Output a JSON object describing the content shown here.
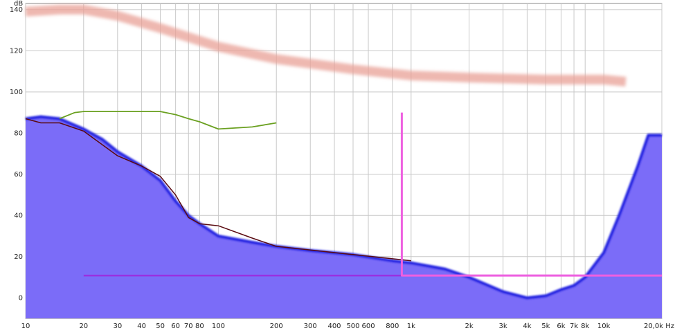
{
  "chart_data": {
    "type": "line",
    "y_label": "dB",
    "x_scale": "log",
    "grid": true,
    "xlim": [
      10,
      20000
    ],
    "ylim": [
      -10,
      143
    ],
    "xticks": [
      10,
      20,
      30,
      40,
      50,
      60,
      70,
      80,
      100,
      200,
      300,
      400,
      500,
      600,
      800,
      {
        "value": 1000,
        "label": "1k"
      },
      {
        "value": 2000,
        "label": "2k"
      },
      {
        "value": 3000,
        "label": "3k"
      },
      {
        "value": 4000,
        "label": "4k"
      },
      {
        "value": 5000,
        "label": "5k"
      },
      {
        "value": 6000,
        "label": "6k"
      },
      {
        "value": 7000,
        "label": "7k"
      },
      {
        "value": 8000,
        "label": "8k"
      },
      {
        "value": 10000,
        "label": "10k"
      },
      {
        "value": 20000,
        "label": "20,0k Hz"
      }
    ],
    "yticks": [
      0,
      20,
      40,
      60,
      80,
      100,
      120,
      140
    ],
    "series": [
      {
        "color": "#e8a095",
        "fill": false,
        "x": [
          10,
          15,
          20,
          30,
          50,
          100,
          200,
          500,
          1000,
          2000,
          5000,
          10000,
          13000
        ],
        "values": [
          139,
          140,
          140,
          137,
          131,
          122,
          116,
          111,
          108,
          107,
          106,
          106,
          105
        ]
      },
      {
        "color": "#7b6cf8",
        "fill": true,
        "x": [
          10,
          12,
          15,
          20,
          25,
          30,
          40,
          50,
          60,
          70,
          80,
          100,
          150,
          200,
          300,
          500,
          800,
          1000,
          1500,
          2000,
          3000,
          4000,
          5000,
          6000,
          7000,
          8000,
          10000,
          12000,
          15000,
          17000,
          20000
        ],
        "values": [
          87,
          88,
          87,
          82,
          77,
          71,
          64,
          57,
          47,
          40,
          36,
          30,
          27,
          25,
          23,
          21,
          18,
          17,
          14,
          10,
          3,
          0,
          1,
          4,
          6,
          10,
          22,
          40,
          64,
          79,
          79
        ]
      },
      {
        "color": "#5a0a10",
        "fill": false,
        "x": [
          10,
          12,
          15,
          20,
          30,
          40,
          50,
          60,
          70,
          80,
          100,
          150,
          200,
          500,
          1000
        ],
        "values": [
          87,
          85,
          85,
          81,
          69,
          64,
          59,
          50,
          39,
          36,
          35,
          29,
          25,
          21,
          18
        ]
      },
      {
        "color": "#6aa020",
        "fill": false,
        "x": [
          15,
          18,
          20,
          30,
          40,
          50,
          60,
          70,
          80,
          100,
          150,
          200
        ],
        "values": [
          87,
          90,
          90.5,
          90.5,
          90.5,
          90.5,
          89,
          87,
          85.5,
          82,
          83,
          85
        ]
      },
      {
        "color": "#9a30e0",
        "fill": false,
        "x": [
          20,
          20000
        ],
        "values": [
          10.8,
          10.8
        ]
      },
      {
        "color": "#ee60e0",
        "fill": false,
        "x": [
          895,
          895,
          20000
        ],
        "values": [
          90,
          10.8,
          10.8
        ]
      }
    ]
  }
}
